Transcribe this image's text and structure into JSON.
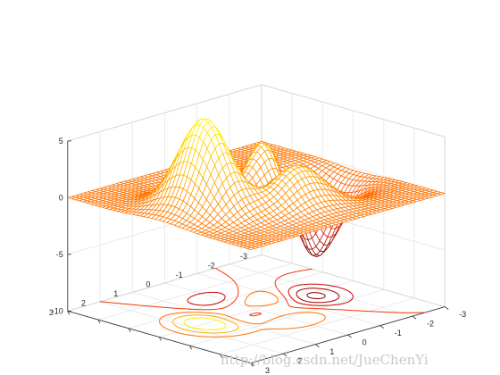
{
  "chart_data": {
    "type": "surface",
    "function": "peaks",
    "x_range": [
      -3,
      3
    ],
    "y_range": [
      -3,
      3
    ],
    "zlim": [
      -10,
      5
    ],
    "colormap": "autumn",
    "mesh": "wireframe",
    "contour_plane": "z = -10",
    "contour_levels": [
      -6,
      -4,
      -2,
      0,
      2,
      4,
      6
    ],
    "grid": true,
    "z_ticks": [
      "-10",
      "-5",
      "0",
      "5"
    ],
    "y_ticks": [
      "3",
      "2",
      "1",
      "0",
      "-1",
      "-2",
      "-3"
    ],
    "x_ticks": [
      "-3",
      "-2",
      "-1",
      "0",
      "1",
      "2",
      "3"
    ],
    "xlabel": "",
    "ylabel": "",
    "zlabel": "",
    "title": ""
  },
  "watermark": "http://blog.csdn.net/JueChenYi"
}
